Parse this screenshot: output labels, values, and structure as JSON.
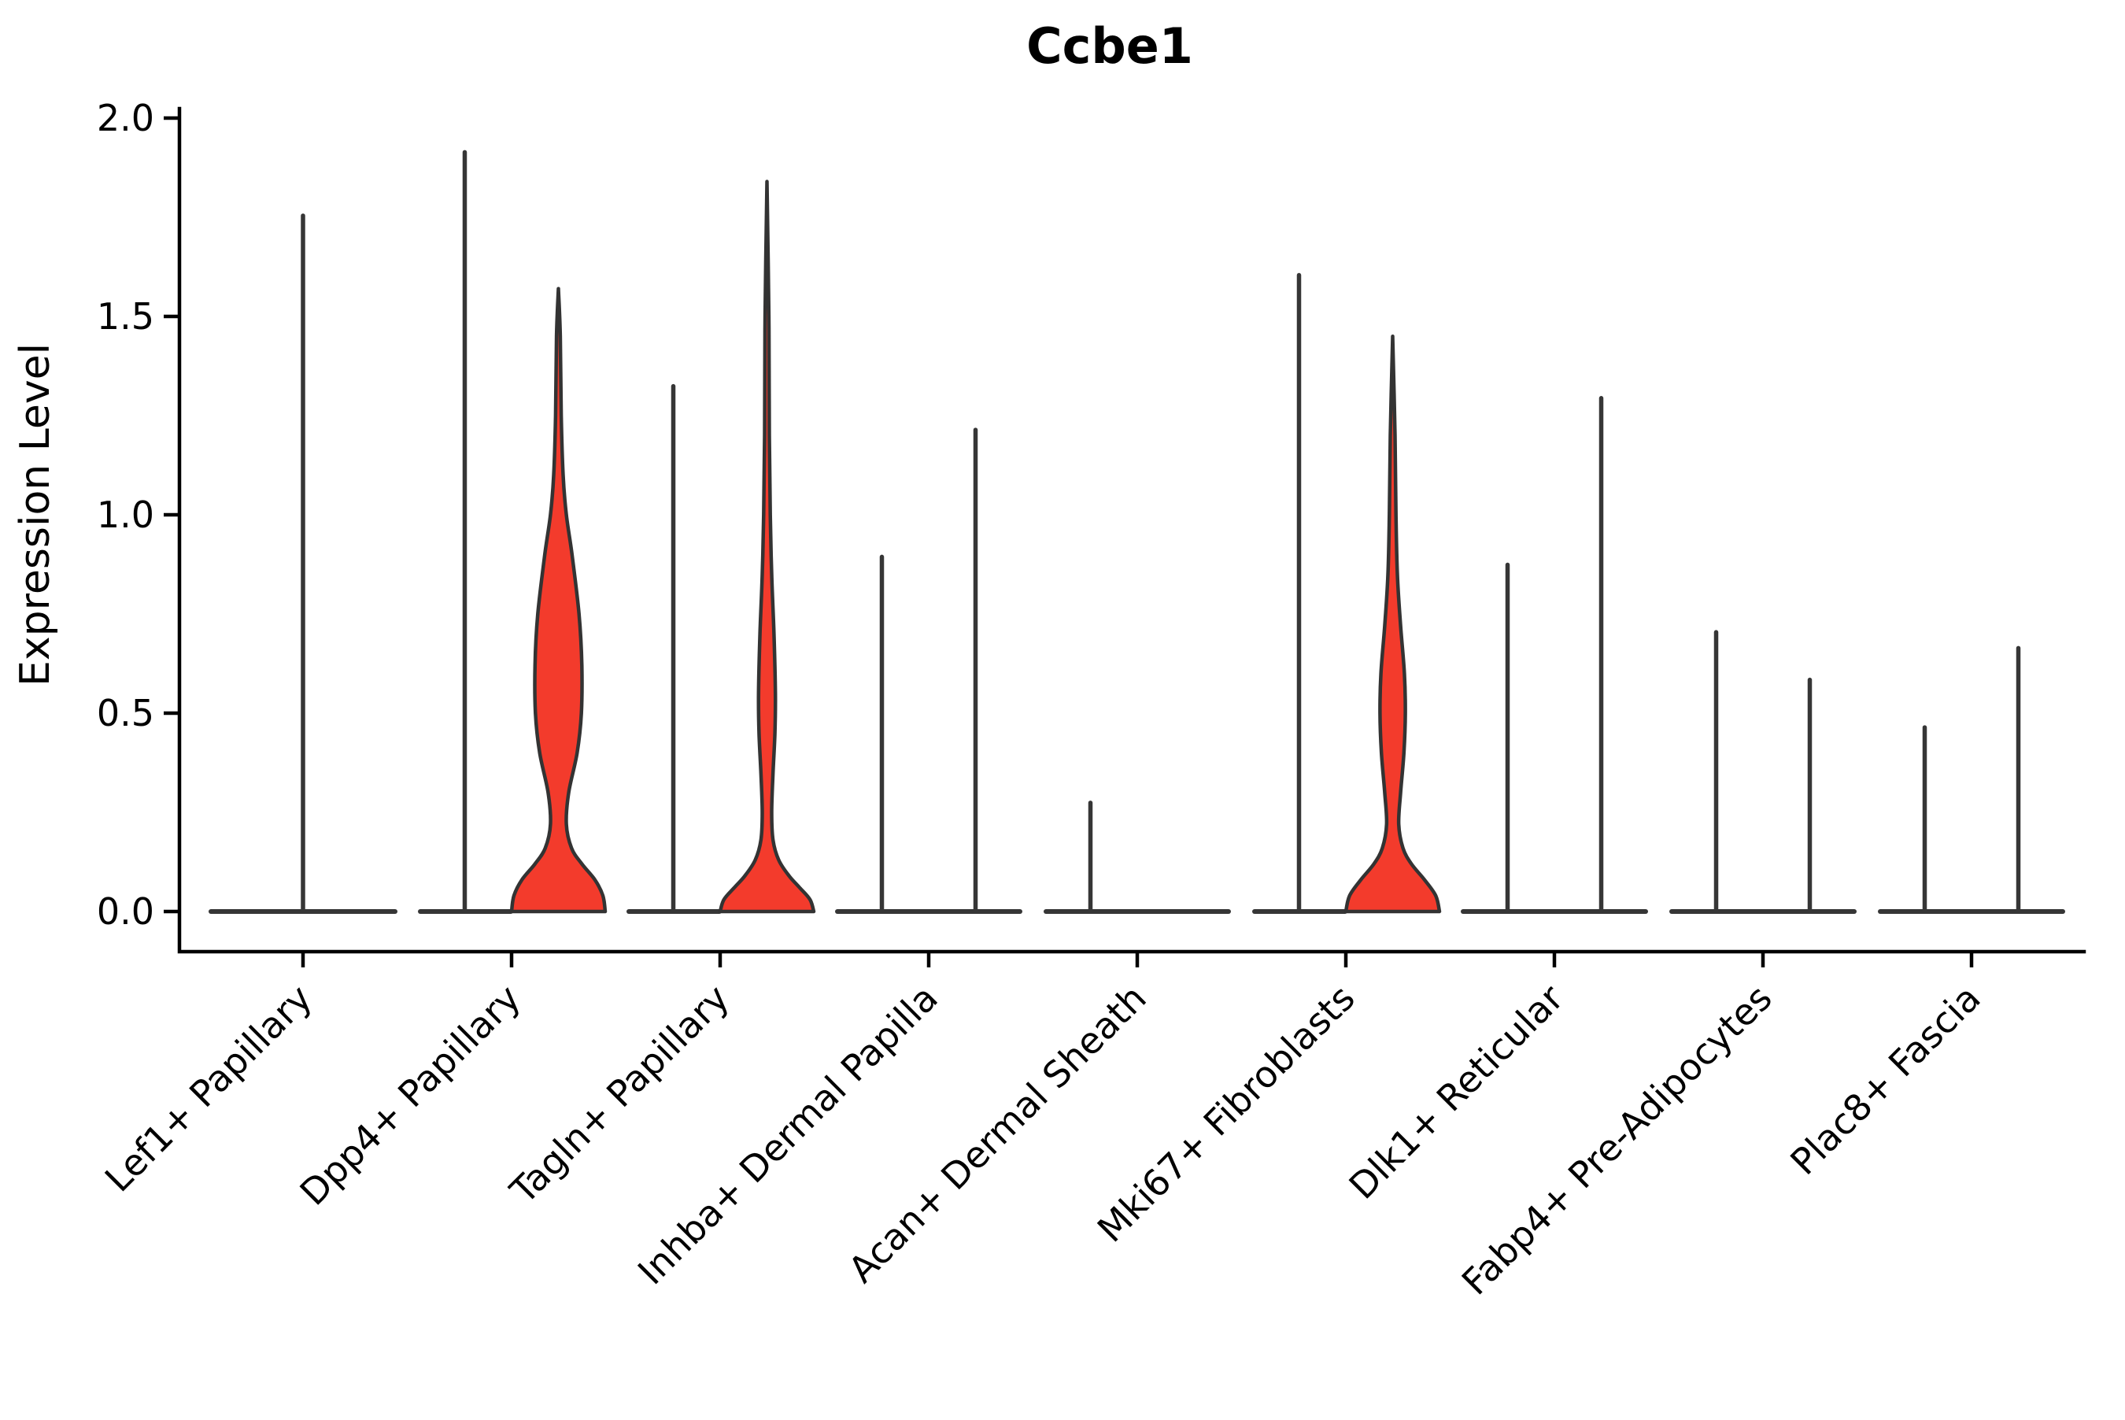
{
  "title": "Ccbe1",
  "ylabel": "Expression Level",
  "colors": {
    "violin_fill": "#f33b2c",
    "violin_outline": "#333333",
    "spike": "#363636",
    "axis": "#000000",
    "background": "#ffffff"
  },
  "chart_data": {
    "type": "violin",
    "title": "Ccbe1",
    "xlabel": "",
    "ylabel": "Expression Level",
    "ylim": [
      0,
      2.0
    ],
    "yticks": [
      "0.0",
      "0.5",
      "1.0",
      "1.5",
      "2.0"
    ],
    "ytick_values": [
      0.0,
      0.5,
      1.0,
      1.5,
      2.0
    ],
    "grid": false,
    "legend": false,
    "x_tick_rotation_deg": 45,
    "categories": [
      "Lef1+ Papillary",
      "Dpp4+ Papillary",
      "Tagln+ Papillary",
      "Inhba+ Dermal Papilla",
      "Acan+ Dermal Sheath",
      "Mki67+ Fibroblasts",
      "Dlk1+ Reticular",
      "Fabp4+ Pre-Adipocytes",
      "Plac8+ Fascia"
    ],
    "violins": [
      {
        "category_index": 0,
        "slot": "center",
        "width": "full",
        "shape": "spike",
        "peak_expression": 1.76
      },
      {
        "category_index": 1,
        "slot": "left",
        "width": "half",
        "shape": "spike",
        "peak_expression": 1.92
      },
      {
        "category_index": 1,
        "slot": "right",
        "width": "half",
        "shape": "density",
        "peak_expression": 1.57,
        "profile": [
          [
            0,
            1.0
          ],
          [
            0.04,
            0.95
          ],
          [
            0.08,
            0.78
          ],
          [
            0.12,
            0.5
          ],
          [
            0.16,
            0.28
          ],
          [
            0.22,
            0.17
          ],
          [
            0.3,
            0.22
          ],
          [
            0.4,
            0.4
          ],
          [
            0.5,
            0.49
          ],
          [
            0.62,
            0.5
          ],
          [
            0.75,
            0.44
          ],
          [
            0.9,
            0.29
          ],
          [
            1.0,
            0.17
          ],
          [
            1.1,
            0.1
          ],
          [
            1.25,
            0.06
          ],
          [
            1.45,
            0.04
          ],
          [
            1.57,
            0.0
          ]
        ]
      },
      {
        "category_index": 2,
        "slot": "left",
        "width": "half",
        "shape": "spike",
        "peak_expression": 1.33
      },
      {
        "category_index": 2,
        "slot": "right",
        "width": "half",
        "shape": "density",
        "peak_expression": 1.84,
        "profile": [
          [
            0,
            1.0
          ],
          [
            0.03,
            0.92
          ],
          [
            0.06,
            0.7
          ],
          [
            0.09,
            0.47
          ],
          [
            0.13,
            0.25
          ],
          [
            0.18,
            0.13
          ],
          [
            0.25,
            0.1
          ],
          [
            0.35,
            0.13
          ],
          [
            0.45,
            0.17
          ],
          [
            0.55,
            0.18
          ],
          [
            0.7,
            0.15
          ],
          [
            0.85,
            0.1
          ],
          [
            1.0,
            0.07
          ],
          [
            1.2,
            0.05
          ],
          [
            1.5,
            0.04
          ],
          [
            1.84,
            0.0
          ]
        ]
      },
      {
        "category_index": 3,
        "slot": "left",
        "width": "half",
        "shape": "spike",
        "peak_expression": 0.9
      },
      {
        "category_index": 3,
        "slot": "right",
        "width": "half",
        "shape": "spike",
        "peak_expression": 1.22
      },
      {
        "category_index": 4,
        "slot": "left",
        "width": "half",
        "shape": "spike",
        "peak_expression": 0.28
      },
      {
        "category_index": 4,
        "slot": "right",
        "width": "half",
        "shape": "flat",
        "peak_expression": 0.0
      },
      {
        "category_index": 5,
        "slot": "left",
        "width": "half",
        "shape": "spike",
        "peak_expression": 1.61
      },
      {
        "category_index": 5,
        "slot": "right",
        "width": "half",
        "shape": "density",
        "peak_expression": 1.45,
        "profile": [
          [
            0,
            1.0
          ],
          [
            0.04,
            0.92
          ],
          [
            0.08,
            0.68
          ],
          [
            0.12,
            0.4
          ],
          [
            0.16,
            0.22
          ],
          [
            0.22,
            0.13
          ],
          [
            0.3,
            0.17
          ],
          [
            0.4,
            0.24
          ],
          [
            0.5,
            0.27
          ],
          [
            0.6,
            0.25
          ],
          [
            0.72,
            0.17
          ],
          [
            0.85,
            0.1
          ],
          [
            1.0,
            0.07
          ],
          [
            1.2,
            0.05
          ],
          [
            1.45,
            0.0
          ]
        ]
      },
      {
        "category_index": 6,
        "slot": "left",
        "width": "half",
        "shape": "spike",
        "peak_expression": 0.88
      },
      {
        "category_index": 6,
        "slot": "right",
        "width": "half",
        "shape": "spike",
        "peak_expression": 1.3
      },
      {
        "category_index": 7,
        "slot": "left",
        "width": "half",
        "shape": "spike",
        "peak_expression": 0.71
      },
      {
        "category_index": 7,
        "slot": "right",
        "width": "half",
        "shape": "spike",
        "peak_expression": 0.59
      },
      {
        "category_index": 8,
        "slot": "left",
        "width": "half",
        "shape": "spike",
        "peak_expression": 0.47
      },
      {
        "category_index": 8,
        "slot": "right",
        "width": "half",
        "shape": "spike",
        "peak_expression": 0.67
      }
    ]
  }
}
